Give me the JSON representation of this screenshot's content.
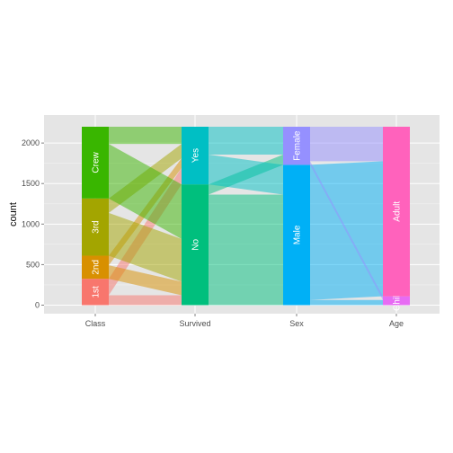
{
  "chart_data": {
    "type": "parallel-sets",
    "title": "",
    "xlabel": "",
    "ylabel": "count",
    "ylim": [
      0,
      2201
    ],
    "yticks": [
      0,
      500,
      1000,
      1500,
      2000
    ],
    "axes": [
      "Class",
      "Survived",
      "Sex",
      "Age"
    ],
    "strata": {
      "Class": [
        {
          "name": "1st",
          "value": 325,
          "color": "#F8766D"
        },
        {
          "name": "2nd",
          "value": 285,
          "color": "#D89000"
        },
        {
          "name": "3rd",
          "value": 706,
          "color": "#A3A500"
        },
        {
          "name": "Crew",
          "value": 885,
          "color": "#39B600"
        }
      ],
      "Survived": [
        {
          "name": "No",
          "value": 1490,
          "color": "#00BF7D"
        },
        {
          "name": "Yes",
          "value": 711,
          "color": "#00BFC4"
        }
      ],
      "Sex": [
        {
          "name": "Male",
          "value": 1731,
          "color": "#00B0F6"
        },
        {
          "name": "Female",
          "value": 470,
          "color": "#9590FF"
        }
      ],
      "Age": [
        {
          "name": "Child",
          "value": 109,
          "color": "#E76BF3"
        },
        {
          "name": "Adult",
          "value": 2092,
          "color": "#FF62BC"
        }
      ]
    },
    "flows": [
      {
        "from_axis": "Class",
        "to_axis": "Survived",
        "links": [
          {
            "from": "1st",
            "to": "No",
            "value": 122
          },
          {
            "from": "1st",
            "to": "Yes",
            "value": 203
          },
          {
            "from": "2nd",
            "to": "No",
            "value": 167
          },
          {
            "from": "2nd",
            "to": "Yes",
            "value": 118
          },
          {
            "from": "3rd",
            "to": "No",
            "value": 528
          },
          {
            "from": "3rd",
            "to": "Yes",
            "value": 178
          },
          {
            "from": "Crew",
            "to": "No",
            "value": 673
          },
          {
            "from": "Crew",
            "to": "Yes",
            "value": 212
          }
        ]
      },
      {
        "from_axis": "Survived",
        "to_axis": "Sex",
        "links": [
          {
            "from": "No",
            "to": "Male",
            "value": 1364
          },
          {
            "from": "No",
            "to": "Female",
            "value": 126
          },
          {
            "from": "Yes",
            "to": "Male",
            "value": 367
          },
          {
            "from": "Yes",
            "to": "Female",
            "value": 344
          }
        ]
      },
      {
        "from_axis": "Sex",
        "to_axis": "Age",
        "links": [
          {
            "from": "Male",
            "to": "Child",
            "value": 64
          },
          {
            "from": "Male",
            "to": "Adult",
            "value": 1667
          },
          {
            "from": "Female",
            "to": "Child",
            "value": 45
          },
          {
            "from": "Female",
            "to": "Adult",
            "value": 425
          }
        ]
      }
    ]
  },
  "colors": {
    "panel_background": "#E5E5E5",
    "grid_major": "#FFFFFF",
    "grid_minor": "#F2F2F2",
    "tick_text": "#4D4D4D"
  }
}
